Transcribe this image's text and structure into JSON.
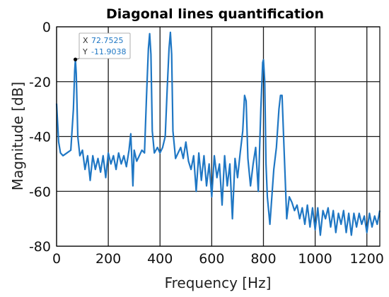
{
  "chart_data": {
    "type": "line",
    "title": "Diagonal lines quantification",
    "xlabel": "Frequency [Hz]",
    "ylabel": "Magnitude [dB]",
    "xlim": [
      0,
      1250
    ],
    "ylim": [
      -80,
      0
    ],
    "xticks": [
      0,
      200,
      400,
      600,
      800,
      1000,
      1200
    ],
    "yticks": [
      0,
      -20,
      -40,
      -60,
      -80
    ],
    "grid": true,
    "line_color": "#1f77c4",
    "x": [
      0,
      8,
      15,
      25,
      40,
      55,
      65,
      70,
      72.75,
      76,
      82,
      90,
      100,
      110,
      120,
      130,
      140,
      150,
      160,
      170,
      180,
      190,
      200,
      210,
      220,
      230,
      240,
      250,
      260,
      270,
      280,
      287,
      295,
      300,
      310,
      320,
      330,
      340,
      348,
      355,
      360,
      365,
      370,
      378,
      390,
      400,
      410,
      420,
      428,
      435,
      440,
      445,
      450,
      460,
      470,
      480,
      490,
      500,
      510,
      520,
      530,
      540,
      550,
      560,
      570,
      580,
      590,
      600,
      610,
      620,
      630,
      640,
      650,
      660,
      670,
      680,
      690,
      700,
      710,
      720,
      727,
      733,
      740,
      750,
      760,
      770,
      780,
      790,
      797,
      800,
      805,
      810,
      815,
      825,
      840,
      850,
      860,
      866,
      872,
      880,
      890,
      900,
      910,
      920,
      930,
      940,
      950,
      960,
      970,
      980,
      990,
      1000,
      1010,
      1020,
      1030,
      1040,
      1050,
      1060,
      1070,
      1080,
      1090,
      1100,
      1110,
      1120,
      1130,
      1140,
      1150,
      1160,
      1170,
      1180,
      1190,
      1200,
      1210,
      1220,
      1230,
      1240,
      1250
    ],
    "y": [
      -28,
      -42,
      -46,
      -47,
      -46,
      -45,
      -30,
      -16,
      -11.9,
      -17,
      -40,
      -47,
      -45,
      -52,
      -47,
      -56,
      -47,
      -52,
      -48,
      -53,
      -47,
      -55,
      -46,
      -50,
      -47,
      -52,
      -46,
      -50,
      -47,
      -51,
      -45,
      -39,
      -58,
      -45,
      -49,
      -47,
      -45,
      -46,
      -25,
      -8,
      -2.5,
      -10,
      -38,
      -46,
      -44,
      -46,
      -44,
      -40,
      -22,
      -8,
      -2,
      -10,
      -38,
      -48,
      -46,
      -44,
      -48,
      -42,
      -49,
      -52,
      -47,
      -60,
      -46,
      -56,
      -47,
      -58,
      -50,
      -62,
      -47,
      -55,
      -50,
      -65,
      -47,
      -58,
      -50,
      -70,
      -48,
      -55,
      -46,
      -38,
      -25,
      -27,
      -48,
      -58,
      -50,
      -44,
      -60,
      -30,
      -13,
      -12,
      -20,
      -50,
      -62,
      -72,
      -52,
      -44,
      -30,
      -25,
      -25,
      -45,
      -70,
      -62,
      -64,
      -67,
      -65,
      -70,
      -66,
      -72,
      -65,
      -73,
      -66,
      -74,
      -66,
      -76,
      -67,
      -70,
      -66,
      -73,
      -67,
      -75,
      -68,
      -72,
      -67,
      -75,
      -68,
      -76,
      -68,
      -73,
      -68,
      -72,
      -69,
      -75,
      -68,
      -73,
      -69,
      -72,
      -67
    ],
    "datatip": {
      "x_label": "X",
      "x_value": "72.7525",
      "y_label": "Y",
      "y_value": "-11.9038",
      "x": 72.75,
      "y": -11.9
    }
  }
}
